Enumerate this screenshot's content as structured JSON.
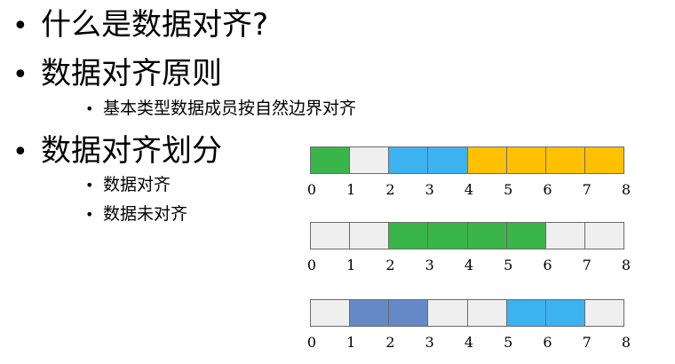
{
  "bullets": [
    {
      "text": "什么是数据对齐?"
    },
    {
      "text": "数据对齐原则",
      "children": [
        "基本类型数据成员按自然边界对齐"
      ]
    },
    {
      "text": "数据对齐划分",
      "children": [
        "数据对齐",
        "数据未对齐"
      ]
    }
  ],
  "bullet_glyph": "•",
  "diagram": {
    "cell_count": 8,
    "tick_labels": [
      "0",
      "1",
      "2",
      "3",
      "4",
      "5",
      "6",
      "7",
      "8"
    ],
    "colors": {
      "empty": "#efefef",
      "green": "#39b54a",
      "light-blue": "#3db2f0",
      "gold": "#ffc000",
      "steel-blue": "#6589c6"
    },
    "rows": [
      {
        "cells": [
          "green",
          "empty",
          "light-blue",
          "light-blue",
          "gold",
          "gold",
          "gold",
          "gold"
        ]
      },
      {
        "cells": [
          "empty",
          "empty",
          "green",
          "green",
          "green",
          "green",
          "empty",
          "empty"
        ]
      },
      {
        "cells": [
          "empty",
          "steel-blue",
          "steel-blue",
          "empty",
          "empty",
          "light-blue",
          "light-blue",
          "empty"
        ]
      }
    ]
  }
}
